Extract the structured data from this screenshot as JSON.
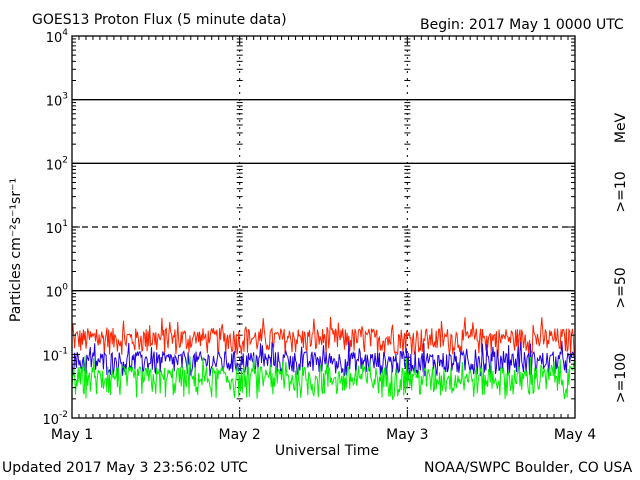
{
  "chart_data": {
    "type": "line",
    "title": "GOES13 Proton Flux (5 minute data)",
    "begin_label": "Begin: 2017 May 1 0000 UTC",
    "xlabel": "Universal Time",
    "ylabel": "Particles cm⁻²s⁻¹sr⁻¹",
    "y_scale": "log",
    "ylim": [
      0.01,
      10000
    ],
    "xlim": [
      0,
      3
    ],
    "x_tick_labels": [
      "May 1",
      "May 2",
      "May 3",
      "May 4"
    ],
    "y_ticks": [
      {
        "base": "10",
        "exp": "-2",
        "value": 0.01
      },
      {
        "base": "10",
        "exp": "-1",
        "value": 0.1
      },
      {
        "base": "10",
        "exp": "0",
        "value": 1
      },
      {
        "base": "10",
        "exp": "1",
        "value": 10
      },
      {
        "base": "10",
        "exp": "2",
        "value": 100
      },
      {
        "base": "10",
        "exp": "3",
        "value": 1000
      },
      {
        "base": "10",
        "exp": "4",
        "value": 10000
      }
    ],
    "threshold_lines": [
      {
        "value": 10,
        "style": "dashed"
      },
      {
        "value": 1,
        "style": "solid"
      },
      {
        "value": 100,
        "style": "solid"
      },
      {
        "value": 1000,
        "style": "solid"
      }
    ],
    "energy_unit": "MeV",
    "series": [
      {
        "name": ">=10",
        "color": "#ff2200",
        "base": 0.17,
        "noise": 0.6
      },
      {
        "name": ">=50",
        "color": "#2200dd",
        "base": 0.075,
        "noise": 0.55
      },
      {
        "name": ">=100",
        "color": "#00ee00",
        "base": 0.04,
        "noise": 0.7
      }
    ]
  },
  "footer": {
    "updated": "Updated 2017 May  3 23:56:02 UTC",
    "credit": "NOAA/SWPC Boulder, CO USA"
  }
}
